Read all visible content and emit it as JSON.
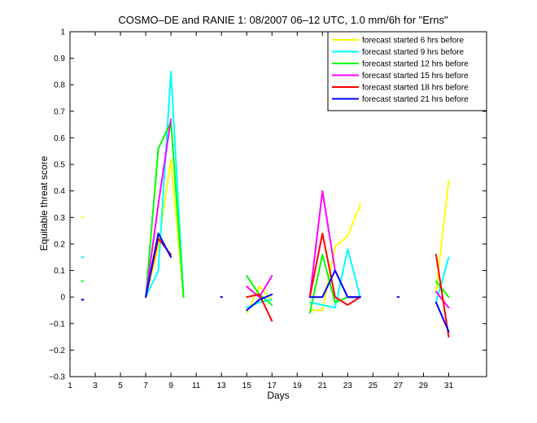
{
  "chart_data": {
    "type": "line",
    "title": "COSMO–DE and RANIE 1: 08/2007 06–12 UTC, 1.0 mm/6h for \"Erns\"",
    "xlabel": "Days",
    "ylabel": "Equitable threat score",
    "xlim": [
      1,
      34
    ],
    "ylim": [
      -0.3,
      1
    ],
    "xticks": [
      1,
      3,
      5,
      7,
      9,
      11,
      13,
      15,
      17,
      19,
      21,
      23,
      25,
      27,
      29,
      31
    ],
    "xtick_labels": [
      "1",
      "3",
      "5",
      "7",
      "9",
      "11",
      "13",
      "15",
      "17",
      "19",
      "21",
      "23",
      "25",
      "27",
      "29",
      "31"
    ],
    "yticks": [
      -0.3,
      -0.2,
      -0.1,
      0,
      0.1,
      0.2,
      0.3,
      0.4,
      0.5,
      0.6,
      0.7,
      0.8,
      0.9,
      1
    ],
    "ytick_labels": [
      "−0.3",
      "−0.2",
      "−0.1",
      "0",
      "0.1",
      "0.2",
      "0.3",
      "0.4",
      "0.5",
      "0.6",
      "0.7",
      "0.8",
      "0.9",
      "1"
    ],
    "grid": false,
    "legend_position": "top-right",
    "series": [
      {
        "name": "forecast started 6 hrs before",
        "color": "#ffff00",
        "segments": [
          [
            [
              2,
              0.3
            ]
          ],
          [
            [
              7,
              0.0
            ],
            [
              8,
              0.19
            ],
            [
              9,
              0.52
            ],
            [
              10,
              0.0
            ]
          ],
          [
            [
              15,
              -0.06
            ],
            [
              16,
              0.04
            ],
            [
              17,
              -0.01
            ]
          ],
          [
            [
              20,
              -0.05
            ],
            [
              21,
              -0.05
            ],
            [
              22,
              0.19
            ],
            [
              23,
              0.23
            ],
            [
              24,
              0.35
            ]
          ],
          [
            [
              30,
              0.02
            ],
            [
              31,
              0.44
            ]
          ]
        ]
      },
      {
        "name": "forecast started 9 hrs before",
        "color": "#00ffff",
        "segments": [
          [
            [
              2,
              0.15
            ]
          ],
          [
            [
              7,
              0.0
            ],
            [
              8,
              0.1
            ],
            [
              9,
              0.85
            ],
            [
              10,
              0.0
            ]
          ],
          [
            [
              15,
              -0.04
            ],
            [
              16,
              -0.02
            ],
            [
              17,
              -0.01
            ]
          ],
          [
            [
              20,
              -0.02
            ],
            [
              21,
              -0.03
            ],
            [
              22,
              -0.04
            ],
            [
              23,
              0.18
            ],
            [
              24,
              0.0
            ]
          ],
          [
            [
              30,
              -0.02
            ],
            [
              31,
              0.15
            ]
          ]
        ]
      },
      {
        "name": "forecast started 12 hrs before",
        "color": "#00ff00",
        "segments": [
          [
            [
              2,
              0.06
            ]
          ],
          [
            [
              7,
              0.0
            ],
            [
              8,
              0.56
            ],
            [
              9,
              0.66
            ],
            [
              10,
              0.0
            ]
          ],
          [
            [
              15,
              0.08
            ],
            [
              16,
              0.01
            ],
            [
              17,
              -0.03
            ]
          ],
          [
            [
              20,
              -0.06
            ],
            [
              21,
              0.16
            ],
            [
              22,
              -0.02
            ],
            [
              23,
              0.0
            ],
            [
              24,
              0.0
            ]
          ],
          [
            [
              30,
              0.06
            ],
            [
              31,
              0.0
            ]
          ]
        ]
      },
      {
        "name": "forecast started 15 hrs before",
        "color": "#ff00ff",
        "segments": [
          [
            [
              2,
              -0.01
            ]
          ],
          [
            [
              7,
              0.0
            ],
            [
              8,
              0.35
            ],
            [
              9,
              0.67
            ]
          ],
          [
            [
              15,
              0.04
            ],
            [
              16,
              0.0
            ],
            [
              17,
              0.08
            ]
          ],
          [
            [
              20,
              0.0
            ],
            [
              21,
              0.4
            ],
            [
              22,
              0.1
            ],
            [
              23,
              0.0
            ],
            [
              24,
              0.0
            ]
          ],
          [
            [
              30,
              0.02
            ],
            [
              31,
              -0.04
            ]
          ]
        ]
      },
      {
        "name": "forecast started 18 hrs before",
        "color": "#ff0000",
        "segments": [
          [
            [
              2,
              -0.01
            ]
          ],
          [
            [
              7,
              0.0
            ],
            [
              8,
              0.22
            ],
            [
              9,
              0.16
            ]
          ],
          [
            [
              15,
              0.0
            ],
            [
              16,
              0.01
            ],
            [
              17,
              -0.09
            ]
          ],
          [
            [
              20,
              0.0
            ],
            [
              21,
              0.24
            ],
            [
              22,
              0.0
            ],
            [
              23,
              -0.03
            ],
            [
              24,
              0.0
            ]
          ],
          [
            [
              30,
              0.16
            ],
            [
              31,
              -0.15
            ]
          ]
        ]
      },
      {
        "name": "forecast started 21 hrs before",
        "color": "#0000ff",
        "segments": [
          [
            [
              2,
              -0.01
            ]
          ],
          [
            [
              7,
              0.0
            ],
            [
              8,
              0.24
            ],
            [
              9,
              0.15
            ]
          ],
          [
            [
              13,
              0.0
            ]
          ],
          [
            [
              15,
              -0.05
            ],
            [
              16,
              -0.01
            ],
            [
              17,
              0.01
            ]
          ],
          [
            [
              20,
              0.0
            ],
            [
              21,
              0.0
            ],
            [
              22,
              0.1
            ],
            [
              23,
              0.0
            ],
            [
              24,
              0.0
            ]
          ],
          [
            [
              27,
              0.0
            ]
          ],
          [
            [
              30,
              -0.02
            ],
            [
              31,
              -0.13
            ]
          ]
        ]
      }
    ]
  }
}
